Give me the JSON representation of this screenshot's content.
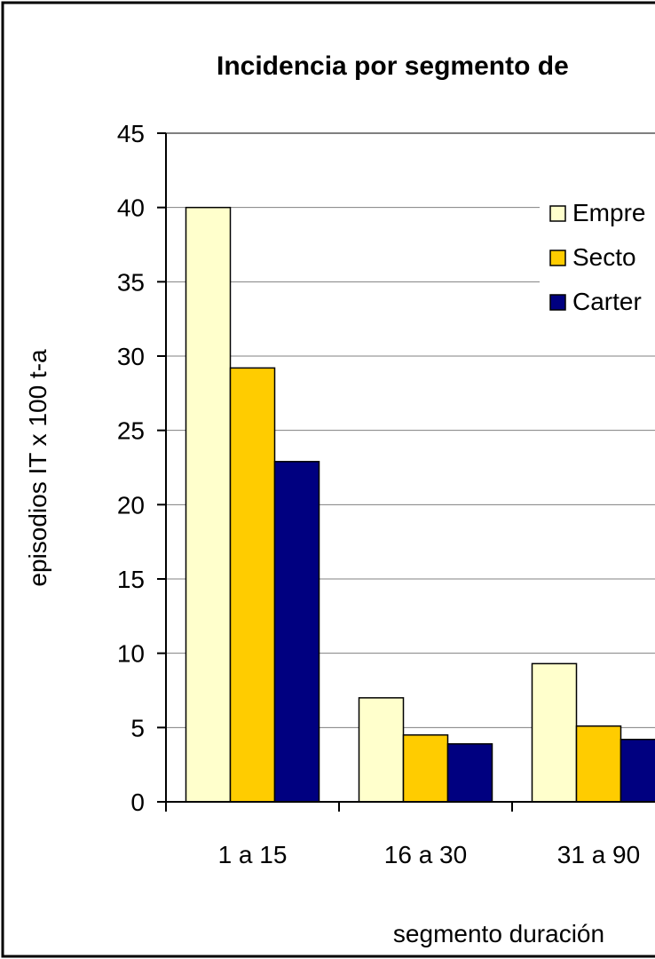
{
  "chart_data": {
    "type": "bar",
    "title": "Incidencia por segmento de",
    "xlabel": "segmento duración",
    "ylabel": "episodios IT x 100 t-a",
    "ylim": [
      0,
      45
    ],
    "yticks": [
      "0",
      "5",
      "10",
      "15",
      "20",
      "25",
      "30",
      "35",
      "40",
      "45"
    ],
    "categories": [
      "1 a 15",
      "16 a 30",
      "31 a 90"
    ],
    "series": [
      {
        "name": "Empre",
        "color": "#FFFFCC",
        "values": [
          40.0,
          7.0,
          9.3
        ]
      },
      {
        "name": "Secto",
        "color": "#FFCC00",
        "values": [
          29.2,
          4.5,
          5.1
        ]
      },
      {
        "name": "Carter",
        "color": "#000080",
        "values": [
          22.9,
          3.9,
          4.2
        ]
      }
    ],
    "grid": true,
    "legend_position": "top-right"
  }
}
